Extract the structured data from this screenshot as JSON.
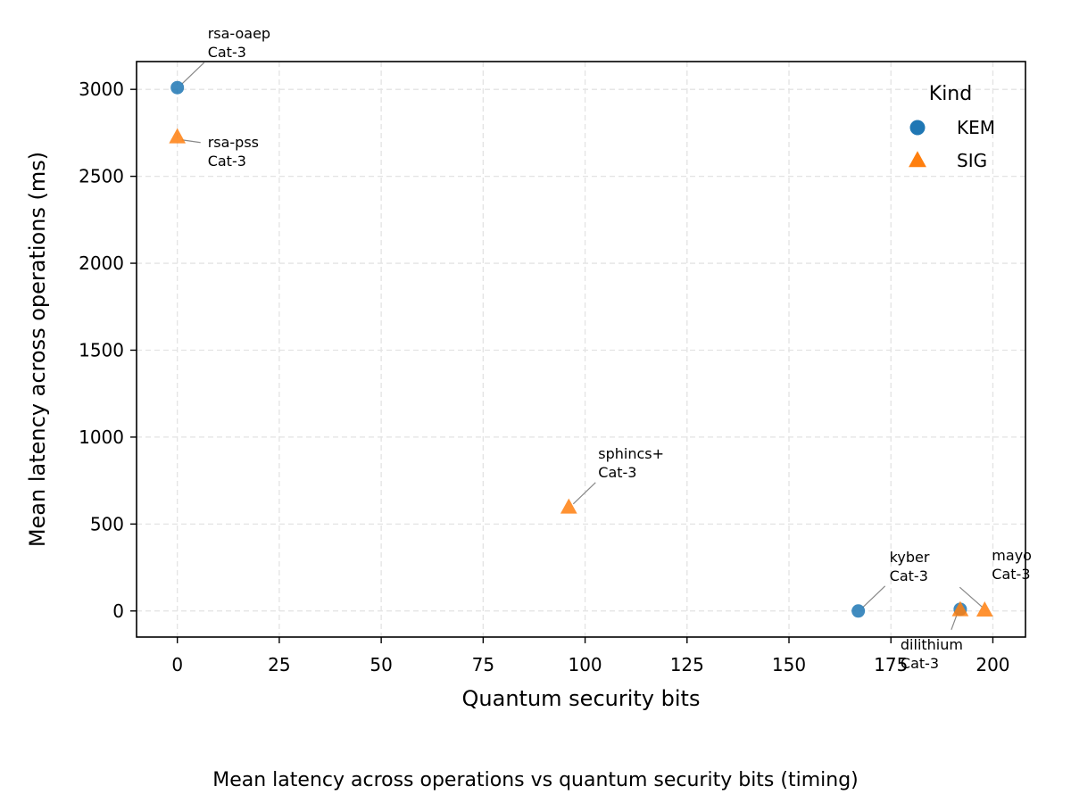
{
  "caption": "Mean latency across operations vs quantum security bits (timing)",
  "chart_data": {
    "type": "scatter",
    "title": "",
    "xlabel": "Quantum security bits",
    "ylabel": "Mean latency across operations (ms)",
    "xlim": [
      -10,
      208
    ],
    "ylim": [
      -150,
      3160
    ],
    "xticks": [
      0,
      25,
      50,
      75,
      100,
      125,
      150,
      175,
      200
    ],
    "yticks": [
      0,
      500,
      1000,
      1500,
      2000,
      2500,
      3000
    ],
    "grid": true,
    "legend": {
      "title": "Kind",
      "placement": "top-right"
    },
    "series": [
      {
        "name": "KEM",
        "marker": "circle",
        "color": "#1f77b4",
        "points": [
          {
            "x": 0,
            "y": 3010,
            "label": "rsa-oaep",
            "sublabel": "Cat-3"
          },
          {
            "x": 167,
            "y": 0,
            "label": "kyber",
            "sublabel": "Cat-3"
          },
          {
            "x": 192,
            "y": 10,
            "label": "",
            "sublabel": ""
          }
        ]
      },
      {
        "name": "SIG",
        "marker": "triangle",
        "color": "#ff7f0e",
        "points": [
          {
            "x": 0,
            "y": 2725,
            "label": "rsa-pss",
            "sublabel": "Cat-3"
          },
          {
            "x": 96,
            "y": 595,
            "label": "sphincs+",
            "sublabel": "Cat-3"
          },
          {
            "x": 192,
            "y": 5,
            "label": "dilithium",
            "sublabel": "Cat-3"
          },
          {
            "x": 198,
            "y": 3,
            "label": "mayo",
            "sublabel": "Cat-3"
          }
        ]
      }
    ]
  }
}
